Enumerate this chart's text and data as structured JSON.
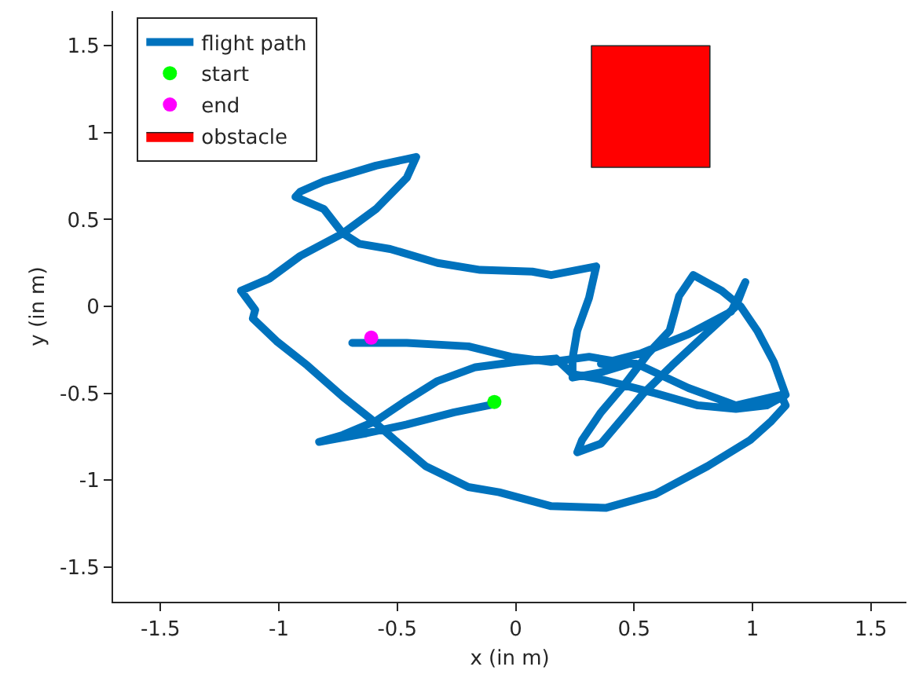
{
  "chart_data": {
    "type": "line",
    "xlabel": "x (in m)",
    "ylabel": "y (in m)",
    "xlim": [
      -1.7,
      1.65
    ],
    "ylim": [
      -1.7,
      1.7
    ],
    "xticks": [
      -1.5,
      -1,
      -0.5,
      0,
      0.5,
      1,
      1.5
    ],
    "yticks": [
      -1.5,
      -1,
      -0.5,
      0,
      0.5,
      1,
      1.5
    ],
    "grid": false,
    "legend": "top left",
    "series": [
      {
        "name": "flight path",
        "type": "line",
        "color": "#0072bd",
        "marker": "none",
        "x": [
          -0.08,
          -0.26,
          -0.46,
          -0.63,
          -0.79,
          -0.83,
          -0.73,
          -0.59,
          -0.46,
          -0.33,
          -0.17,
          0,
          0.17,
          0.24,
          0.36,
          0.59,
          0.77,
          0.93,
          1.06,
          1.14,
          1.09,
          1.02,
          0.95,
          0.87,
          0.75,
          0.69,
          0.65,
          0.56,
          0.46,
          0.36,
          0.28,
          0.26,
          0.36,
          0.46,
          0.54,
          0.66,
          0.81,
          0.93,
          0.97,
          0.91,
          0.73,
          0.53,
          0.36,
          0.51,
          0.73,
          0.93,
          1.12,
          1.14,
          1.08,
          0.99,
          0.81,
          0.59,
          0.38,
          0.15,
          -0.07,
          -0.2,
          -0.38,
          -0.51,
          -0.61,
          -0.73,
          -0.88,
          -1.01,
          -1.11,
          -1.1,
          -1.16,
          -1.04,
          -0.91,
          -0.73,
          -0.59,
          -0.46,
          -0.42,
          -0.59,
          -0.81,
          -0.91,
          -0.93,
          -0.81,
          -0.73,
          -0.66,
          -0.53,
          -0.33,
          -0.15,
          0.07,
          0.15,
          0.34,
          0.31,
          0.26,
          0.24,
          0.24,
          0.36,
          0.48,
          0.31,
          0.15,
          -0.02,
          -0.2,
          -0.46,
          -0.69
        ],
        "values": [
          -0.56,
          -0.61,
          -0.68,
          -0.73,
          -0.77,
          -0.78,
          -0.74,
          -0.66,
          -0.54,
          -0.43,
          -0.35,
          -0.32,
          -0.3,
          -0.39,
          -0.42,
          -0.5,
          -0.57,
          -0.59,
          -0.57,
          -0.51,
          -0.32,
          -0.14,
          0,
          0.09,
          0.18,
          0.06,
          -0.14,
          -0.27,
          -0.45,
          -0.61,
          -0.77,
          -0.84,
          -0.79,
          -0.63,
          -0.5,
          -0.34,
          -0.15,
          0,
          0.14,
          -0.03,
          -0.16,
          -0.27,
          -0.33,
          -0.33,
          -0.47,
          -0.57,
          -0.51,
          -0.57,
          -0.66,
          -0.77,
          -0.92,
          -1.08,
          -1.16,
          -1.15,
          -1.07,
          -1.04,
          -0.92,
          -0.77,
          -0.65,
          -0.52,
          -0.34,
          -0.2,
          -0.07,
          -0.02,
          0.09,
          0.16,
          0.29,
          0.42,
          0.56,
          0.74,
          0.86,
          0.81,
          0.72,
          0.66,
          0.63,
          0.56,
          0.42,
          0.36,
          0.33,
          0.25,
          0.21,
          0.2,
          0.18,
          0.23,
          0.05,
          -0.14,
          -0.3,
          -0.41,
          -0.38,
          -0.33,
          -0.29,
          -0.32,
          -0.29,
          -0.23,
          -0.21,
          -0.21
        ]
      },
      {
        "name": "start",
        "type": "scatter",
        "color": "#00ff00",
        "marker": "circle",
        "x": [
          -0.09
        ],
        "values": [
          -0.55
        ]
      },
      {
        "name": "end",
        "type": "scatter",
        "color": "#ff00ff",
        "marker": "circle",
        "x": [
          -0.61
        ],
        "values": [
          -0.18
        ]
      },
      {
        "name": "obstacle",
        "type": "area",
        "color": "#ff0000",
        "x": [
          0.32,
          0.32,
          0.82,
          0.82,
          0.32
        ],
        "values": [
          0.8,
          1.5,
          1.5,
          0.8,
          0.8
        ]
      }
    ]
  }
}
